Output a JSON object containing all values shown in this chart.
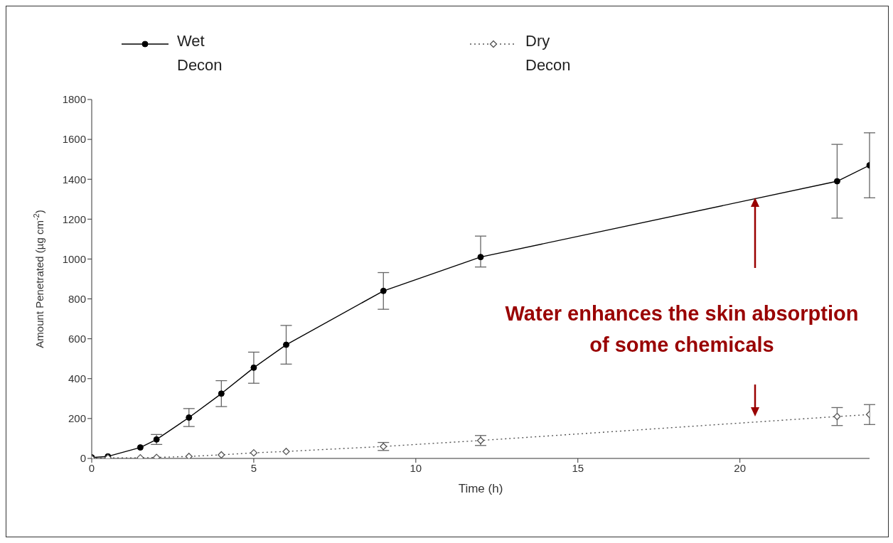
{
  "chart_data": {
    "type": "line",
    "xlabel": "Time (h)",
    "ylabel": "Amount Penetrated (µg cm$^{-2}$)",
    "x": [
      0,
      0.5,
      1.5,
      2,
      3,
      4,
      5,
      6,
      9,
      12,
      23,
      24
    ],
    "series": [
      {
        "name": "Wet Decon",
        "color": "#000000",
        "marker": "circle",
        "line_style": "solid",
        "values": [
          5,
          10,
          55,
          95,
          205,
          325,
          455,
          570,
          840,
          1010,
          1390,
          1470
        ],
        "errors": [
          null,
          null,
          null,
          25,
          45,
          65,
          78,
          97,
          92,
          [
            960,
            1115
          ],
          185,
          163
        ]
      },
      {
        "name": "Dry Decon",
        "color": "#555555",
        "marker": "diamond",
        "line_style": "dotted",
        "values": [
          0,
          3,
          3,
          5,
          10,
          18,
          28,
          35,
          60,
          90,
          210,
          220
        ],
        "errors": [
          null,
          null,
          null,
          null,
          null,
          null,
          null,
          null,
          20,
          25,
          45,
          50
        ]
      }
    ],
    "xlim": [
      0,
      24
    ],
    "xticks": [
      0,
      5,
      10,
      15,
      20
    ],
    "ylim": [
      0,
      1800
    ],
    "yticks": [
      0,
      200,
      400,
      600,
      800,
      1000,
      1200,
      1400,
      1600,
      1800
    ],
    "legend": "top",
    "annotations": [
      "Water enhances the skin absorption of some chemicals"
    ]
  }
}
